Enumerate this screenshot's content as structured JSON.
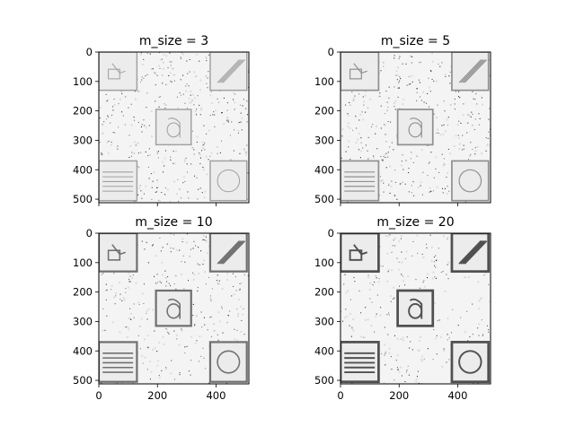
{
  "figure": {
    "background": "#ffffff"
  },
  "chart_data": [
    {
      "type": "heatmap",
      "title": "m_size = 3",
      "xlabel": "",
      "ylabel": "",
      "xlim": [
        0,
        512
      ],
      "ylim": [
        512,
        0
      ],
      "x_ticks": [
        0,
        200,
        400
      ],
      "y_ticks": [
        0,
        100,
        200,
        300,
        400,
        500
      ],
      "x_tick_labels": [
        "",
        "",
        ""
      ],
      "y_tick_labels": [
        "0",
        "100",
        "200",
        "300",
        "400",
        "500"
      ],
      "colormap": "gray",
      "grid": false,
      "noise_density": 0.55,
      "box_darkness": 0.25
    },
    {
      "type": "heatmap",
      "title": "m_size = 5",
      "xlabel": "",
      "ylabel": "",
      "xlim": [
        0,
        512
      ],
      "ylim": [
        512,
        0
      ],
      "x_ticks": [
        0,
        200,
        400
      ],
      "y_ticks": [
        0,
        100,
        200,
        300,
        400,
        500
      ],
      "x_tick_labels": [
        "",
        "",
        ""
      ],
      "y_tick_labels": [
        "0",
        "100",
        "200",
        "300",
        "400",
        "500"
      ],
      "colormap": "gray",
      "grid": false,
      "noise_density": 0.5,
      "box_darkness": 0.35
    },
    {
      "type": "heatmap",
      "title": "m_size = 10",
      "xlabel": "",
      "ylabel": "",
      "xlim": [
        0,
        512
      ],
      "ylim": [
        512,
        0
      ],
      "x_ticks": [
        0,
        200,
        400
      ],
      "y_ticks": [
        0,
        100,
        200,
        300,
        400,
        500
      ],
      "x_tick_labels": [
        "0",
        "200",
        "400"
      ],
      "y_tick_labels": [
        "0",
        "100",
        "200",
        "300",
        "400",
        "500"
      ],
      "colormap": "gray",
      "grid": false,
      "noise_density": 0.4,
      "box_darkness": 0.55
    },
    {
      "type": "heatmap",
      "title": "m_size = 20",
      "xlabel": "",
      "ylabel": "",
      "xlim": [
        0,
        512
      ],
      "ylim": [
        512,
        0
      ],
      "x_ticks": [
        0,
        200,
        400
      ],
      "y_ticks": [
        0,
        100,
        200,
        300,
        400,
        500
      ],
      "x_tick_labels": [
        "0",
        "200",
        "400"
      ],
      "y_tick_labels": [
        "0",
        "100",
        "200",
        "300",
        "400",
        "500"
      ],
      "colormap": "gray",
      "grid": false,
      "noise_density": 0.35,
      "box_darkness": 0.75
    }
  ]
}
